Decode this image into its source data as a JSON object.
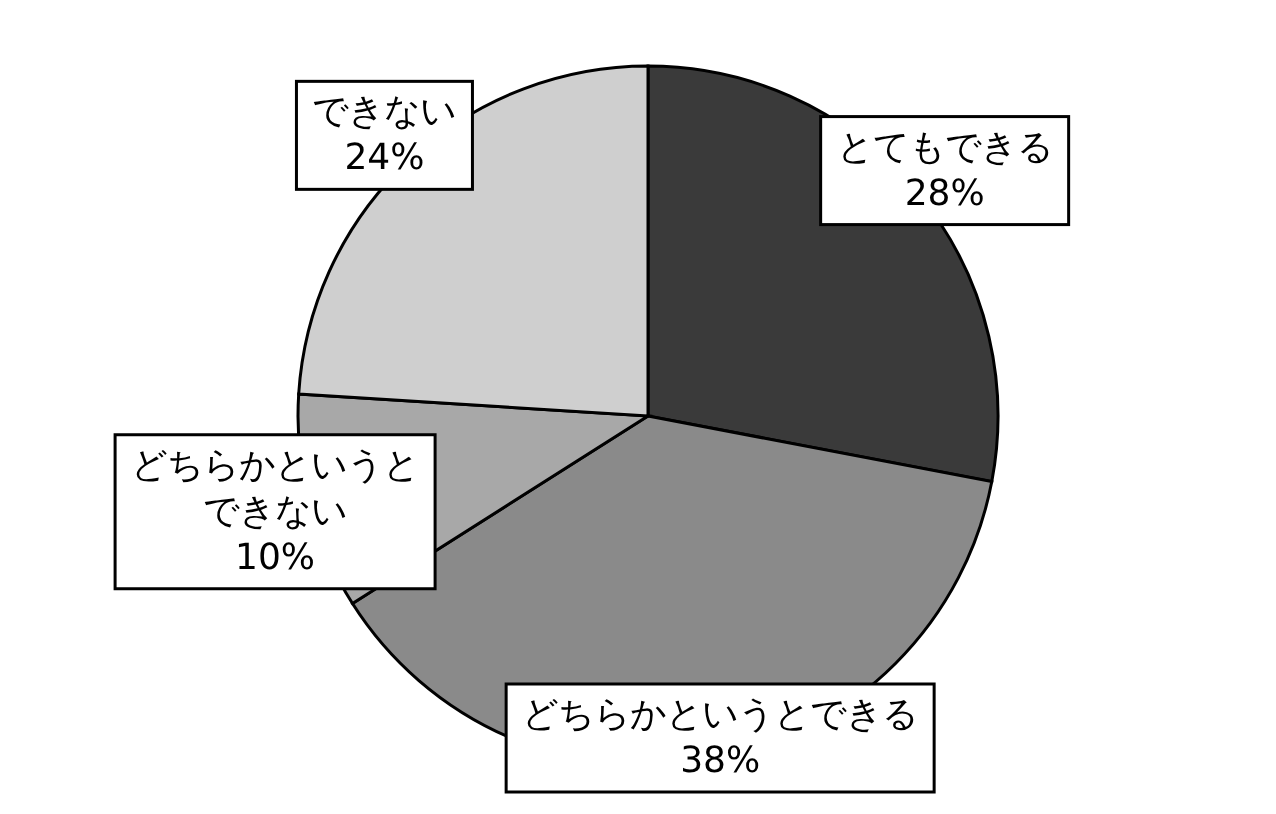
{
  "chart_data": {
    "type": "pie",
    "categories": [
      "とてもできる",
      "どちらかというとできる",
      "どちらかというとできない",
      "できない"
    ],
    "values": [
      28,
      38,
      10,
      24
    ],
    "colors": [
      "#3a3a3a",
      "#8a8a8a",
      "#a8a8a8",
      "#cfcfcf"
    ],
    "value_labels": [
      "28%",
      "38%",
      "10%",
      "24%"
    ]
  }
}
